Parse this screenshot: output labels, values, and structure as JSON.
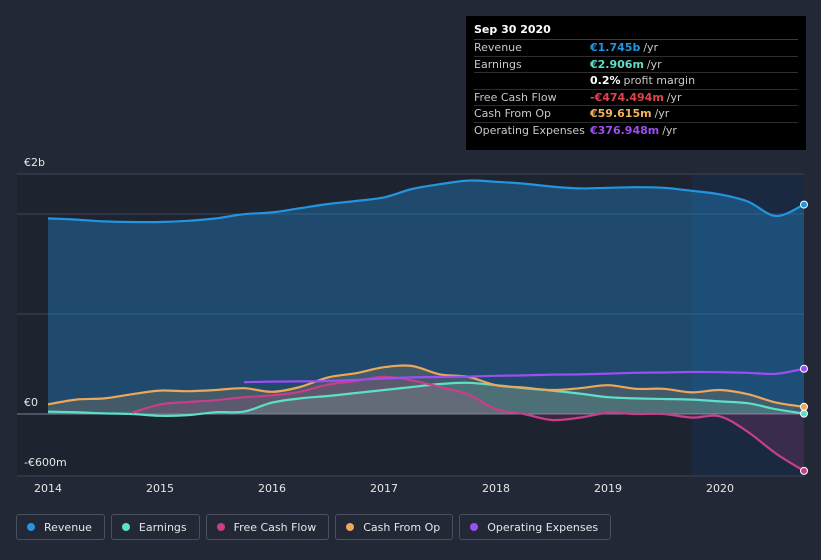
{
  "tooltip": {
    "date": "Sep 30 2020",
    "rows": [
      {
        "label": "Revenue",
        "value": "€1.745b",
        "unit": "/yr",
        "color": "#2394df"
      },
      {
        "label": "Earnings",
        "value": "€2.906m",
        "unit": "/yr",
        "color": "#5ee0c7"
      },
      {
        "label": "",
        "value": "0.2%",
        "unit": "profit margin",
        "color": "#ffffff"
      },
      {
        "label": "Free Cash Flow",
        "value": "-€474.494m",
        "unit": "/yr",
        "color": "#e2424a"
      },
      {
        "label": "Cash From Op",
        "value": "€59.615m",
        "unit": "/yr",
        "color": "#f0b35f"
      },
      {
        "label": "Operating Expenses",
        "value": "€376.948m",
        "unit": "/yr",
        "color": "#9c4ef0"
      }
    ]
  },
  "legend": [
    {
      "label": "Revenue",
      "color": "#2394df"
    },
    {
      "label": "Earnings",
      "color": "#5ee0c7"
    },
    {
      "label": "Free Cash Flow",
      "color": "#c73f8a"
    },
    {
      "label": "Cash From Op",
      "color": "#eba85a"
    },
    {
      "label": "Operating Expenses",
      "color": "#9c4ef0"
    }
  ],
  "chart_data": {
    "type": "area",
    "title": "",
    "xlabel": "",
    "ylabel": "",
    "unit": "EUR millions",
    "y_tick_labels": [
      {
        "value": 2000,
        "label": "€2b"
      },
      {
        "value": 0,
        "label": "€0"
      },
      {
        "value": -600,
        "label": "-€600m"
      }
    ],
    "ylim": [
      -600,
      2000
    ],
    "xlim": [
      2014.0,
      2020.75
    ],
    "x_ticks": [
      2014,
      2015,
      2016,
      2017,
      2018,
      2019,
      2020
    ],
    "x_tick_labels": [
      "2014",
      "2015",
      "2016",
      "2017",
      "2018",
      "2019",
      "2020"
    ],
    "highlight_from": 2019.75,
    "series": [
      {
        "name": "Revenue",
        "color": "#2394df",
        "points": [
          [
            2014.0,
            1630
          ],
          [
            2014.25,
            1620
          ],
          [
            2014.5,
            1605
          ],
          [
            2014.75,
            1600
          ],
          [
            2015.0,
            1600
          ],
          [
            2015.25,
            1610
          ],
          [
            2015.5,
            1630
          ],
          [
            2015.75,
            1665
          ],
          [
            2016.0,
            1680
          ],
          [
            2016.25,
            1715
          ],
          [
            2016.5,
            1750
          ],
          [
            2016.75,
            1775
          ],
          [
            2017.0,
            1805
          ],
          [
            2017.25,
            1875
          ],
          [
            2017.5,
            1915
          ],
          [
            2017.75,
            1945
          ],
          [
            2018.0,
            1935
          ],
          [
            2018.25,
            1920
          ],
          [
            2018.5,
            1895
          ],
          [
            2018.75,
            1880
          ],
          [
            2019.0,
            1885
          ],
          [
            2019.25,
            1890
          ],
          [
            2019.5,
            1885
          ],
          [
            2019.75,
            1860
          ],
          [
            2020.0,
            1830
          ],
          [
            2020.25,
            1770
          ],
          [
            2020.5,
            1650
          ],
          [
            2020.75,
            1745
          ]
        ]
      },
      {
        "name": "Earnings",
        "color": "#5ee0c7",
        "points": [
          [
            2014.0,
            20
          ],
          [
            2014.25,
            15
          ],
          [
            2014.5,
            5
          ],
          [
            2014.75,
            0
          ],
          [
            2015.0,
            -15
          ],
          [
            2015.25,
            -10
          ],
          [
            2015.5,
            15
          ],
          [
            2015.75,
            20
          ],
          [
            2016.0,
            95
          ],
          [
            2016.25,
            130
          ],
          [
            2016.5,
            150
          ],
          [
            2016.75,
            175
          ],
          [
            2017.0,
            200
          ],
          [
            2017.25,
            225
          ],
          [
            2017.5,
            250
          ],
          [
            2017.75,
            260
          ],
          [
            2018.0,
            240
          ],
          [
            2018.25,
            215
          ],
          [
            2018.5,
            195
          ],
          [
            2018.75,
            170
          ],
          [
            2019.0,
            140
          ],
          [
            2019.25,
            130
          ],
          [
            2019.5,
            125
          ],
          [
            2019.75,
            120
          ],
          [
            2020.0,
            105
          ],
          [
            2020.25,
            90
          ],
          [
            2020.5,
            40
          ],
          [
            2020.75,
            3
          ]
        ]
      },
      {
        "name": "Free Cash Flow",
        "color": "#c73f8a",
        "points": [
          [
            2014.75,
            10
          ],
          [
            2015.0,
            80
          ],
          [
            2015.25,
            100
          ],
          [
            2015.5,
            115
          ],
          [
            2015.75,
            140
          ],
          [
            2016.0,
            155
          ],
          [
            2016.25,
            185
          ],
          [
            2016.5,
            245
          ],
          [
            2016.75,
            275
          ],
          [
            2017.0,
            310
          ],
          [
            2017.25,
            280
          ],
          [
            2017.5,
            225
          ],
          [
            2017.75,
            165
          ],
          [
            2018.0,
            40
          ],
          [
            2018.25,
            0
          ],
          [
            2018.5,
            -50
          ],
          [
            2018.75,
            -30
          ],
          [
            2019.0,
            10
          ],
          [
            2019.25,
            0
          ],
          [
            2019.5,
            0
          ],
          [
            2019.75,
            -30
          ],
          [
            2020.0,
            -20
          ],
          [
            2020.25,
            -150
          ],
          [
            2020.5,
            -330
          ],
          [
            2020.75,
            -474
          ]
        ]
      },
      {
        "name": "Cash From Op",
        "color": "#eba85a",
        "points": [
          [
            2014.0,
            80
          ],
          [
            2014.25,
            120
          ],
          [
            2014.5,
            130
          ],
          [
            2014.75,
            165
          ],
          [
            2015.0,
            195
          ],
          [
            2015.25,
            190
          ],
          [
            2015.5,
            200
          ],
          [
            2015.75,
            215
          ],
          [
            2016.0,
            185
          ],
          [
            2016.25,
            225
          ],
          [
            2016.5,
            305
          ],
          [
            2016.75,
            340
          ],
          [
            2017.0,
            390
          ],
          [
            2017.25,
            400
          ],
          [
            2017.5,
            330
          ],
          [
            2017.75,
            310
          ],
          [
            2018.0,
            240
          ],
          [
            2018.25,
            220
          ],
          [
            2018.5,
            200
          ],
          [
            2018.75,
            215
          ],
          [
            2019.0,
            240
          ],
          [
            2019.25,
            210
          ],
          [
            2019.5,
            210
          ],
          [
            2019.75,
            180
          ],
          [
            2020.0,
            200
          ],
          [
            2020.25,
            165
          ],
          [
            2020.5,
            95
          ],
          [
            2020.75,
            60
          ]
        ]
      },
      {
        "name": "Operating Expenses",
        "color": "#9c4ef0",
        "points": [
          [
            2015.75,
            265
          ],
          [
            2016.0,
            270
          ],
          [
            2016.25,
            272
          ],
          [
            2016.5,
            275
          ],
          [
            2016.75,
            285
          ],
          [
            2017.0,
            295
          ],
          [
            2017.25,
            305
          ],
          [
            2017.5,
            308
          ],
          [
            2017.75,
            312
          ],
          [
            2018.0,
            318
          ],
          [
            2018.25,
            322
          ],
          [
            2018.5,
            328
          ],
          [
            2018.75,
            330
          ],
          [
            2019.0,
            337
          ],
          [
            2019.25,
            343
          ],
          [
            2019.5,
            346
          ],
          [
            2019.75,
            350
          ],
          [
            2020.0,
            348
          ],
          [
            2020.25,
            343
          ],
          [
            2020.5,
            335
          ],
          [
            2020.75,
            377
          ]
        ]
      }
    ]
  }
}
